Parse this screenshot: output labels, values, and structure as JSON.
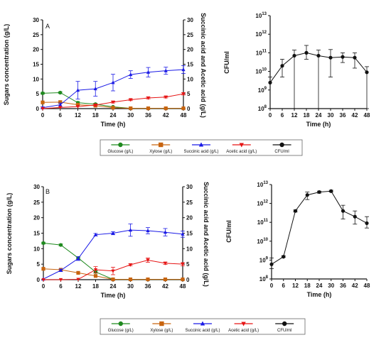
{
  "colors": {
    "glucose": "#1f8a1f",
    "xylose": "#c8640f",
    "succinic": "#1a1ae6",
    "acetic": "#e61414",
    "cfu": "#111111"
  },
  "legend": {
    "items": [
      {
        "label": "Glucose (g/L)",
        "series": "glucose",
        "marker": "circle"
      },
      {
        "label": "Xylose (g/L)",
        "series": "xylose",
        "marker": "square"
      },
      {
        "label": "Succinic acid (g/L)",
        "series": "succinic",
        "marker": "triangle-up"
      },
      {
        "label": "Acetic acid (g/L)",
        "series": "acetic",
        "marker": "triangle-down"
      },
      {
        "label": "CFU/ml",
        "series": "cfu",
        "marker": "circle"
      }
    ]
  },
  "chart_data": [
    {
      "type": "line",
      "panel_label": "A",
      "xlabel": "Time (h)",
      "ylabel": "Sugars concentration (g/L)",
      "y2label": "Succinic acid and Acetic acid (g/L)",
      "x": [
        0,
        6,
        12,
        18,
        24,
        30,
        36,
        42,
        48
      ],
      "xlim": [
        0,
        48
      ],
      "ylim": [
        0,
        30
      ],
      "y2lim": [
        0,
        30
      ],
      "xticks": [
        "0",
        "6",
        "12",
        "18",
        "24",
        "30",
        "36",
        "42",
        "48"
      ],
      "yticks": [
        "0",
        "5",
        "10",
        "15",
        "20",
        "25",
        "30"
      ],
      "y2ticks": [
        "0",
        "5",
        "10",
        "15",
        "20",
        "25",
        "30"
      ],
      "series": [
        {
          "key": "glucose",
          "axis": "left",
          "values": [
            5.2,
            5.4,
            2.0,
            1.5,
            0.6,
            0.1,
            0.1,
            0.1,
            0.1
          ],
          "errors": [
            0.3,
            0.3,
            0.4,
            0.3,
            0.2,
            0.1,
            0.1,
            0.1,
            0.1
          ]
        },
        {
          "key": "xylose",
          "axis": "left",
          "values": [
            2.1,
            2.2,
            1.3,
            1.0,
            0.3,
            0.1,
            0.1,
            0.1,
            0.1
          ],
          "errors": [
            0.2,
            0.2,
            0.2,
            0.2,
            0.1,
            0.1,
            0.1,
            0.1,
            0.1
          ]
        },
        {
          "key": "succinic",
          "axis": "right",
          "values": [
            0.3,
            1.3,
            6.2,
            6.7,
            8.8,
            11.5,
            12.3,
            12.8,
            13.2
          ],
          "errors": [
            0.3,
            0.6,
            3.0,
            2.5,
            2.8,
            1.3,
            1.6,
            1.2,
            1.3
          ]
        },
        {
          "key": "acetic",
          "axis": "right",
          "values": [
            0.0,
            0.4,
            0.7,
            1.2,
            2.2,
            3.0,
            3.6,
            3.9,
            5.0
          ],
          "errors": [
            0.1,
            0.2,
            0.2,
            0.3,
            0.3,
            0.3,
            0.3,
            0.3,
            0.4
          ]
        }
      ]
    },
    {
      "type": "line",
      "xlabel": "Time (h)",
      "ylabel": "CFU/ml",
      "yscale": "log",
      "x": [
        0,
        6,
        12,
        18,
        24,
        30,
        36,
        42,
        48
      ],
      "xlim": [
        0,
        48
      ],
      "ylim": [
        100000000,
        10000000000000
      ],
      "xticks": [
        "0",
        "6",
        "12",
        "18",
        "24",
        "30",
        "36",
        "42",
        "48"
      ],
      "ytick_exponents": [
        8,
        9,
        10,
        11,
        12,
        13
      ],
      "series": [
        {
          "key": "cfu",
          "values": [
            2500000000,
            20000000000,
            70000000000,
            100000000000,
            70000000000,
            55000000000,
            60000000000,
            55000000000,
            9000000000
          ],
          "err_low": [
            2500000000,
            15000000000,
            70000000000,
            55000000000,
            70000000000,
            50000000000,
            30000000000,
            40000000000,
            9000000000
          ],
          "err_high": [
            2500000000,
            25000000000,
            70000000000,
            150000000000,
            70000000000,
            95000000000,
            40000000000,
            45000000000,
            9000000000
          ]
        }
      ]
    },
    {
      "type": "line",
      "panel_label": "B",
      "xlabel": "Time (h)",
      "ylabel": "Sugars concentration (g/L)",
      "y2label": "Succinic acid and Acetic acid (g/L)",
      "x": [
        0,
        6,
        12,
        18,
        24,
        30,
        36,
        42,
        48
      ],
      "xlim": [
        0,
        48
      ],
      "ylim": [
        0,
        30
      ],
      "y2lim": [
        0,
        30
      ],
      "xticks": [
        "0",
        "6",
        "12",
        "18",
        "24",
        "30",
        "36",
        "42",
        "48"
      ],
      "yticks": [
        "0",
        "5",
        "10",
        "15",
        "20",
        "25",
        "30"
      ],
      "y2ticks": [
        "0",
        "5",
        "10",
        "15",
        "20",
        "25",
        "30"
      ],
      "series": [
        {
          "key": "glucose",
          "axis": "left",
          "values": [
            11.8,
            11.2,
            7.0,
            2.5,
            0.1,
            0.1,
            0.1,
            0.1,
            0.1
          ],
          "errors": [
            0.3,
            0.3,
            0.3,
            0.4,
            0.1,
            0.1,
            0.1,
            0.1,
            0.1
          ]
        },
        {
          "key": "xylose",
          "axis": "left",
          "values": [
            3.5,
            3.2,
            2.2,
            1.2,
            0.1,
            0.1,
            0.1,
            0.1,
            0.1
          ],
          "errors": [
            0.2,
            0.2,
            0.2,
            0.2,
            0.1,
            0.1,
            0.1,
            0.1,
            0.1
          ]
        },
        {
          "key": "succinic",
          "axis": "right",
          "values": [
            0.2,
            3.0,
            6.8,
            14.5,
            15.0,
            16.0,
            15.8,
            15.3,
            14.7
          ],
          "errors": [
            0.2,
            0.4,
            0.6,
            0.4,
            0.5,
            2.0,
            1.0,
            1.2,
            1.0
          ]
        },
        {
          "key": "acetic",
          "axis": "right",
          "values": [
            0.0,
            0.0,
            0.1,
            3.2,
            2.8,
            4.8,
            6.3,
            5.3,
            5.0
          ],
          "errors": [
            0.1,
            0.1,
            0.1,
            1.0,
            1.2,
            0.3,
            0.7,
            0.4,
            0.5
          ]
        }
      ]
    },
    {
      "type": "line",
      "xlabel": "Time (h)",
      "ylabel": "CFU/ml",
      "yscale": "log",
      "x": [
        0,
        6,
        12,
        18,
        24,
        30,
        36,
        42,
        48
      ],
      "xlim": [
        0,
        48
      ],
      "ylim": [
        100000000,
        10000000000000
      ],
      "xticks": [
        "0",
        "6",
        "12",
        "18",
        "24",
        "30",
        "36",
        "42",
        "48"
      ],
      "ytick_exponents": [
        8,
        9,
        10,
        11,
        12,
        13
      ],
      "series": [
        {
          "key": "cfu",
          "values": [
            600000000,
            1500000000,
            400000000000,
            2800000000000,
            4000000000000,
            4500000000000,
            400000000000,
            200000000000,
            90000000000
          ],
          "err_low": [
            250000000,
            100000000,
            50000000000,
            1200000000000,
            500000000000,
            500000000000,
            250000000000,
            120000000000,
            40000000000
          ],
          "err_high": [
            700000000,
            200000000,
            50000000000,
            1200000000000,
            500000000000,
            500000000000,
            400000000000,
            200000000000,
            110000000000
          ]
        }
      ]
    }
  ]
}
